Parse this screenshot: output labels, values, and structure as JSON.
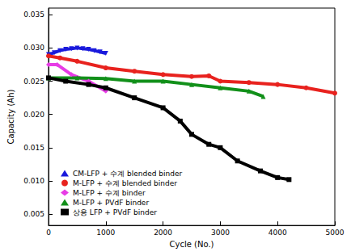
{
  "chart_data": {
    "type": "line",
    "x_label": "Cycle (No.)",
    "y_label": "Capacity (Ah)",
    "xlim": [
      0,
      5000
    ],
    "xticks": [
      0,
      1000,
      2000,
      3000,
      4000,
      5000
    ],
    "ylim": [
      0.0033,
      0.036
    ],
    "yticks": [
      0.005,
      {
        "value": 0.01,
        "label": "0.010"
      },
      0.015,
      {
        "value": 0.02,
        "label": "0.020"
      },
      0.025,
      {
        "value": 0.03,
        "label": "0.030"
      },
      0.035
    ],
    "grid": false,
    "legend": "lower left",
    "series": [
      {
        "name": "CM-LFP + 수계 blended binder",
        "color": "#1a1adc",
        "marker": "triangle_down",
        "x": [
          0,
          100,
          200,
          300,
          400,
          500,
          600,
          700,
          800,
          900,
          1000
        ],
        "values": [
          0.029,
          0.0293,
          0.0296,
          0.0298,
          0.0299,
          0.03,
          0.0299,
          0.0298,
          0.0296,
          0.0294,
          0.0292
        ]
      },
      {
        "name": "M-LFP + 수계 blended binder",
        "color": "#e8221e",
        "marker": "circle",
        "x": [
          0,
          200,
          500,
          1000,
          1500,
          2000,
          2500,
          2800,
          3000,
          3500,
          4000,
          4500,
          5000
        ],
        "values": [
          0.0288,
          0.0285,
          0.028,
          0.027,
          0.0265,
          0.026,
          0.0257,
          0.0258,
          0.025,
          0.0248,
          0.0245,
          0.024,
          0.0232
        ]
      },
      {
        "name": "M-LFP + 수계 binder",
        "color": "#e73ce6",
        "marker": "diamond",
        "x": [
          0,
          150,
          400,
          700,
          1000
        ],
        "values": [
          0.0275,
          0.0275,
          0.026,
          0.025,
          0.0235
        ]
      },
      {
        "name": "M-LFP + PVdF binder",
        "color": "#12901a",
        "marker": "triangle",
        "x": [
          0,
          500,
          1000,
          1500,
          2000,
          2500,
          3000,
          3500,
          3750
        ],
        "values": [
          0.0255,
          0.0255,
          0.0254,
          0.025,
          0.025,
          0.0245,
          0.024,
          0.0235,
          0.0227
        ]
      },
      {
        "name": "상용 LFP + PVdF binder",
        "color": "#000000",
        "marker": "square",
        "x": [
          0,
          300,
          700,
          1000,
          1500,
          2000,
          2300,
          2500,
          2800,
          3000,
          3300,
          3700,
          4000,
          4200
        ],
        "values": [
          0.0255,
          0.025,
          0.0245,
          0.024,
          0.0225,
          0.021,
          0.019,
          0.017,
          0.0155,
          0.015,
          0.013,
          0.0115,
          0.0105,
          0.0102
        ]
      }
    ]
  }
}
